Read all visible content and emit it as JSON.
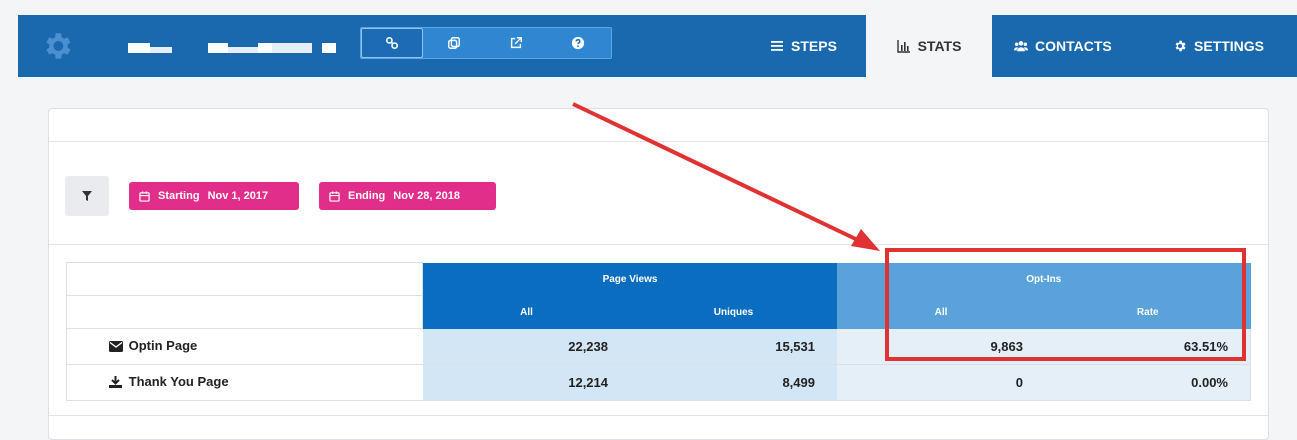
{
  "header": {
    "tools": [
      {
        "icon": "link-icon"
      },
      {
        "icon": "copy-icon"
      },
      {
        "icon": "external-link-icon"
      },
      {
        "icon": "help-icon"
      }
    ],
    "tabs": [
      {
        "label": "STEPS",
        "icon": "list-icon"
      },
      {
        "label": "STATS",
        "icon": "bar-chart-icon",
        "active": true
      },
      {
        "label": "CONTACTS",
        "icon": "users-icon"
      },
      {
        "label": "SETTINGS",
        "icon": "gear-icon"
      }
    ]
  },
  "filters": {
    "start": {
      "label": "Starting",
      "value": "Nov 1, 2017"
    },
    "end": {
      "label": "Ending",
      "value": "Nov 28, 2018"
    }
  },
  "table": {
    "groups": [
      "Page Views",
      "Opt-Ins"
    ],
    "subheaders": [
      "All",
      "Uniques",
      "All",
      "Rate"
    ],
    "rows": [
      {
        "name": "Optin Page",
        "icon": "envelope-icon",
        "pv_all": "22,238",
        "pv_uniques": "15,531",
        "oi_all": "9,863",
        "oi_rate": "63.51%"
      },
      {
        "name": "Thank You Page",
        "icon": "download-icon",
        "pv_all": "12,214",
        "pv_uniques": "8,499",
        "oi_all": "0",
        "oi_rate": "0.00%"
      }
    ]
  },
  "colors": {
    "header": "#1a68ad",
    "pill": "#e12e8a",
    "annotation": "#e03233"
  }
}
